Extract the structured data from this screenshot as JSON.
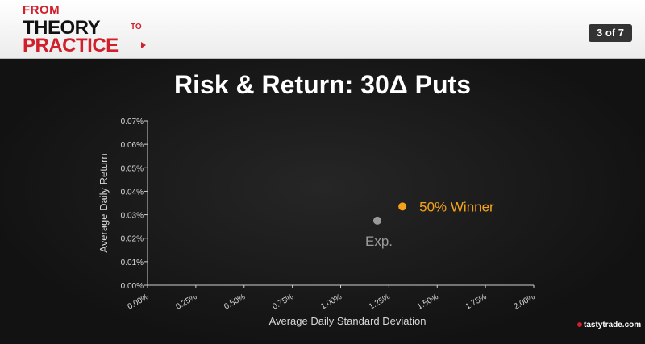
{
  "header": {
    "logo_from": "FROM",
    "logo_theory": "THEORY",
    "logo_to": "TO",
    "logo_practice": "PRACTICE",
    "page_indicator": "3 of 7"
  },
  "colors": {
    "brand_red": "#d1202b",
    "winner": "#f5a21a",
    "expected": "#9a9a9a",
    "axis": "#cfcfcf"
  },
  "chart_data": {
    "type": "scatter",
    "title": "Risk & Return: 30Δ Puts",
    "xlabel": "Average Daily Standard Deviation",
    "ylabel": "Average Daily Return",
    "xlim": [
      0,
      2.0
    ],
    "ylim": [
      0,
      0.07
    ],
    "x_ticks": [
      0,
      0.25,
      0.5,
      0.75,
      1.0,
      1.25,
      1.5,
      1.75,
      2.0
    ],
    "x_tick_labels": [
      "0.00%",
      "0.25%",
      "0.50%",
      "0.75%",
      "1.00%",
      "1.25%",
      "1.50%",
      "1.75%",
      "2.00%"
    ],
    "y_ticks": [
      0,
      0.01,
      0.02,
      0.03,
      0.04,
      0.05,
      0.06,
      0.07
    ],
    "y_tick_labels": [
      "0.00%",
      "0.01%",
      "0.02%",
      "0.03%",
      "0.04%",
      "0.05%",
      "0.06%",
      "0.07%"
    ],
    "grid": false,
    "points": [
      {
        "label": "Exp.",
        "x": 1.19,
        "y": 0.0275,
        "color": "#9a9a9a",
        "label_position": "below"
      },
      {
        "label": "50% Winner",
        "x": 1.32,
        "y": 0.0335,
        "color": "#f5a21a",
        "label_position": "right"
      }
    ]
  },
  "footer": {
    "brand": "tastytrade.com"
  }
}
